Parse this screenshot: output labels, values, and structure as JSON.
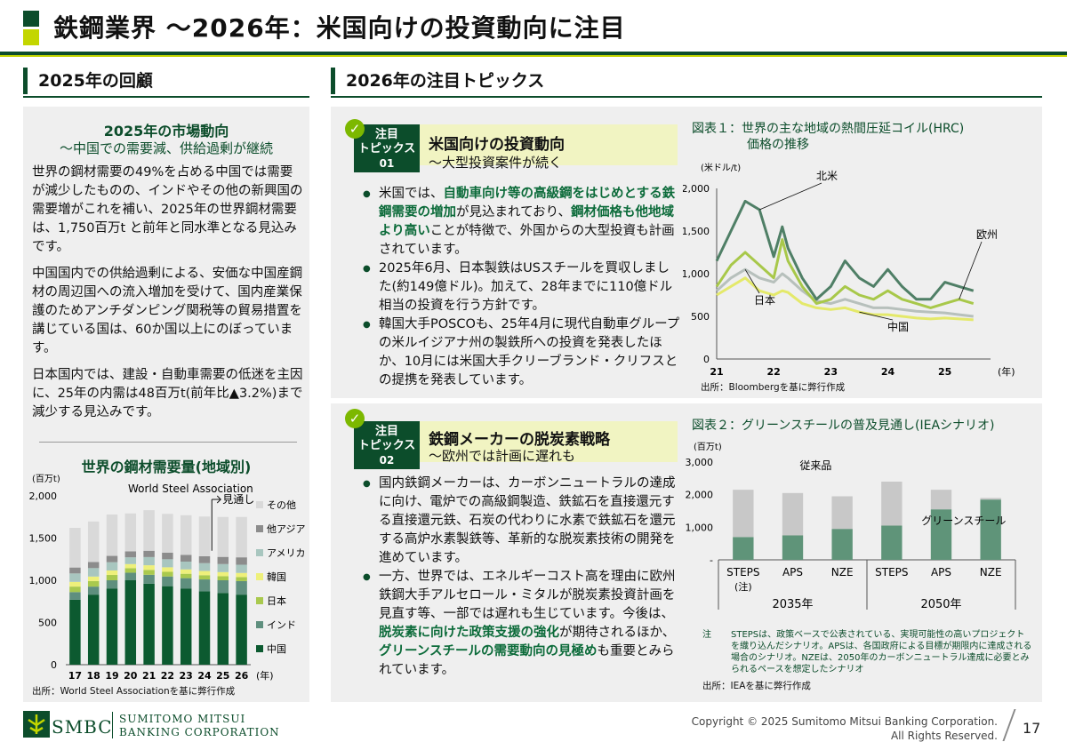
{
  "page": {
    "title": "鉄鋼業界 ～2026年：米国向けの投資動向に注目",
    "left_heading": "2025年の回顧",
    "right_heading": "2026年の注目トピックス",
    "page_number": "17",
    "copyright_line1": "Copyright © 2025 Sumitomo Mitsui Banking Corporation.",
    "copyright_line2": "All Rights Reserved.",
    "logo_text": "SMBC",
    "company_line1": "SUMITOMO MITSUI",
    "company_line2": "BANKING CORPORATION"
  },
  "review": {
    "title": "2025年の市場動向",
    "subtitle": "～中国での需要減、供給過剰が継続",
    "paragraphs": [
      "世界の鋼材需要の49%を占める中国では需要が減少したものの、インドやその他の新興国の需要増がこれを補い、2025年の世界鋼材需要は、1,750百万t と前年と同水準となる見込みです。",
      "中国国内での供給過剰による、安価な中国産鋼材の周辺国への流入増加を受けて、国内産業保護のためアンチダンピング関税等の貿易措置を講じている国は、60か国以上にのぼっています。",
      "日本国内では、建設・自動車需要の低迷を主因に、25年の内需は48百万t(前年比▲3.2%)まで減少する見込みです。"
    ]
  },
  "topics": [
    {
      "badge_line1": "注目",
      "badge_line2": "トピックス",
      "badge_num": "01",
      "title": "米国向けの投資動向",
      "subtitle": "～大型投資案件が続く",
      "bullets": [
        [
          {
            "t": "米国では、",
            "h": false
          },
          {
            "t": "自動車向け等の高級鋼をはじめとする鉄鋼需要の増加",
            "h": true
          },
          {
            "t": "が見込まれており、",
            "h": false
          },
          {
            "t": "鋼材価格も他地域より高い",
            "h": true
          },
          {
            "t": "ことが特徴で、外国からの大型投資も計画されています。",
            "h": false
          }
        ],
        [
          {
            "t": "2025年6月、日本製鉄はUSスチールを買収しました(約149億ドル)。加えて、28年までに110億ドル相当の投資を行う方針です。",
            "h": false
          }
        ],
        [
          {
            "t": "韓国大手POSCOも、25年4月に現代自動車グループの米ルイジアナ州の製鉄所への投資を発表したほか、10月には米国大手クリーブランド・クリフスとの提携を発表しています。",
            "h": false
          }
        ]
      ]
    },
    {
      "badge_line1": "注目",
      "badge_line2": "トピックス",
      "badge_num": "02",
      "title": "鉄鋼メーカーの脱炭素戦略",
      "subtitle": "～欧州では計画に遅れも",
      "bullets": [
        [
          {
            "t": "国内鉄鋼メーカーは、カーボンニュートラルの達成に向け、電炉での高級鋼製造、鉄鉱石を直接還元する直接還元鉄、石炭の代わりに水素で鉄鉱石を還元する高炉水素製鉄等、革新的な脱炭素技術の開発を進めています。",
            "h": false
          }
        ],
        [
          {
            "t": "一方、世界では、エネルギーコスト高を理由に欧州鉄鋼大手アルセロール・ミタルが脱炭素投資計画を見直す等、一部では遅れも生じています。今後は、",
            "h": false
          },
          {
            "t": "脱炭素に向けた政策支援の強化",
            "h": true
          },
          {
            "t": "が期待されるほか、",
            "h": false
          },
          {
            "t": "グリーンスチールの需要動向の見極め",
            "h": true
          },
          {
            "t": "も重要とみられています。",
            "h": false
          }
        ]
      ]
    }
  ],
  "colors": {
    "dark_green": "#0c4d2b",
    "lime": "#c3d600",
    "china": "#0c5a30",
    "india": "#5f8f7e",
    "japan": "#a9c94e",
    "korea": "#eef07a",
    "america": "#a8c6bf",
    "other_asia": "#8c8c8c",
    "other": "#d9d9d9",
    "green_steel": "#5f9479",
    "conventional": "#c8c8c8"
  },
  "chart_data": [
    {
      "id": "steel-demand",
      "type": "bar",
      "stacked": true,
      "title": "世界の鋼材需要量(地域別)",
      "unit": "(百万t)",
      "xunit": "(年)",
      "annotation": "World Steel Association",
      "forecast_label": "見通し",
      "source": "出所：World Steel Associationを基に弊行作成",
      "categories": [
        "17",
        "18",
        "19",
        "20",
        "21",
        "22",
        "23",
        "24",
        "25",
        "26"
      ],
      "ylim": [
        0,
        2000
      ],
      "yticks": [
        "0",
        "500",
        "1,000",
        "1,500",
        "2,000"
      ],
      "series": [
        {
          "name": "中国",
          "color_key": "china",
          "values": [
            770,
            830,
            900,
            1000,
            960,
            930,
            900,
            870,
            850,
            830
          ]
        },
        {
          "name": "インド",
          "color_key": "india",
          "values": [
            90,
            95,
            100,
            90,
            105,
            115,
            125,
            140,
            150,
            160
          ]
        },
        {
          "name": "日本",
          "color_key": "japan",
          "values": [
            65,
            65,
            63,
            53,
            57,
            55,
            52,
            50,
            48,
            48
          ]
        },
        {
          "name": "韓国",
          "color_key": "korea",
          "values": [
            56,
            54,
            53,
            49,
            56,
            54,
            52,
            50,
            49,
            49
          ]
        },
        {
          "name": "アメリカ",
          "color_key": "america",
          "values": [
            100,
            100,
            98,
            80,
            97,
            95,
            92,
            93,
            95,
            97
          ]
        },
        {
          "name": "他アジア",
          "color_key": "other_asia",
          "values": [
            70,
            72,
            75,
            70,
            75,
            78,
            80,
            82,
            85,
            88
          ]
        },
        {
          "name": "その他",
          "color_key": "other",
          "values": [
            470,
            480,
            490,
            450,
            480,
            460,
            470,
            470,
            473,
            478
          ]
        }
      ]
    },
    {
      "id": "hrc-price",
      "type": "line",
      "title_line1": "図表１：世界の主な地域の熱間圧延コイル(HRC)",
      "title_line2": "価格の推移",
      "unit": "(米ドル/t)",
      "xunit": "(年)",
      "source": "出所：Bloombergを基に弊行作成",
      "x_ticks": [
        "21",
        "22",
        "23",
        "24",
        "25"
      ],
      "ylim": [
        0,
        2000
      ],
      "yticks": [
        "0",
        "500",
        "1,000",
        "1,500",
        "2,000"
      ],
      "x": [
        21.0,
        21.25,
        21.5,
        21.75,
        22.0,
        22.15,
        22.25,
        22.5,
        22.75,
        23.0,
        23.25,
        23.5,
        23.75,
        24.0,
        24.25,
        24.5,
        24.75,
        25.0,
        25.25,
        25.5
      ],
      "series": [
        {
          "name": "北米",
          "color": "#4f7f66",
          "values": [
            1150,
            1500,
            1850,
            1750,
            1200,
            1550,
            1300,
            950,
            700,
            850,
            1150,
            950,
            850,
            1050,
            850,
            700,
            700,
            900,
            850,
            800
          ]
        },
        {
          "name": "欧州",
          "color": "#a8c84a",
          "values": [
            850,
            1100,
            1250,
            1100,
            950,
            1400,
            1150,
            850,
            650,
            700,
            850,
            750,
            700,
            800,
            700,
            650,
            600,
            650,
            700,
            650
          ]
        },
        {
          "name": "日本",
          "color": "#b7c0bc",
          "values": [
            800,
            950,
            1050,
            950,
            900,
            1000,
            950,
            800,
            680,
            650,
            700,
            650,
            600,
            600,
            580,
            560,
            550,
            540,
            520,
            500
          ]
        },
        {
          "name": "中国",
          "color": "#e4e96a",
          "values": [
            750,
            850,
            950,
            800,
            750,
            800,
            780,
            650,
            600,
            580,
            600,
            550,
            520,
            520,
            500,
            480,
            470,
            480,
            470,
            460
          ]
        }
      ]
    },
    {
      "id": "green-steel",
      "type": "bar",
      "stacked": true,
      "title": "図表２：グリーンスチールの普及見通し(IEAシナリオ)",
      "unit": "(百万t)",
      "ylim": [
        0,
        3000
      ],
      "yticks": [
        "-",
        "1,000",
        "2,000",
        "3,000"
      ],
      "categories": [
        "STEPS",
        "APS",
        "NZE",
        "STEPS",
        "APS",
        "NZE"
      ],
      "category_notes": [
        "(注)",
        "",
        "",
        "",
        "",
        ""
      ],
      "groups": [
        "2035年",
        "2050年"
      ],
      "series": [
        {
          "name": "グリーンスチール",
          "color_key": "green_steel",
          "values": [
            700,
            750,
            950,
            1050,
            1550,
            1850
          ]
        },
        {
          "name": "従来品",
          "color_key": "conventional",
          "values": [
            1450,
            1300,
            1000,
            1350,
            600,
            50
          ]
        }
      ],
      "note_label": "注",
      "note": "STEPSは、政策ベースで公表されている、実現可能性の高いプロジェクトを織り込んだシナリオ。APSは、各国政府による目標が期限内に達成される場合のシナリオ。NZEは、2050年のカーボンニュートラル達成に必要とみられるペースを想定したシナリオ",
      "source": "出所：IEAを基に弊行作成"
    }
  ]
}
